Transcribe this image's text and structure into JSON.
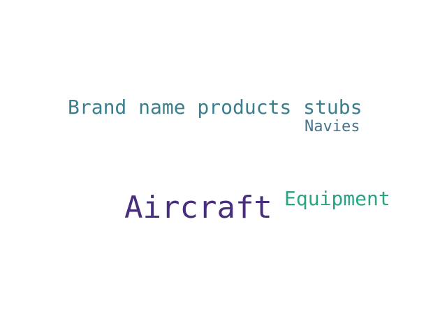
{
  "words": [
    {
      "text": "Brand name products stubs",
      "color": "#3b7f8e"
    },
    {
      "text": "Navies",
      "color": "#46758c"
    },
    {
      "text": "Aircraft",
      "color": "#472f7d"
    },
    {
      "text": "Equipment",
      "color": "#2aa383"
    }
  ]
}
